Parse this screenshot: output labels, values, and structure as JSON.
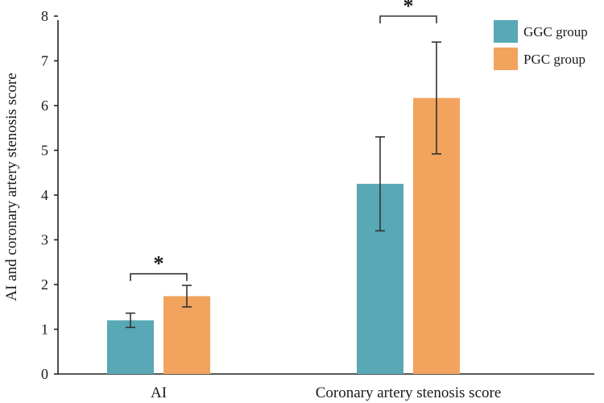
{
  "chart_data": {
    "type": "bar",
    "title": "",
    "xlabel": "",
    "ylabel": "AI and coronary artery stenosis score",
    "ylim": [
      0,
      8
    ],
    "yticks": [
      0,
      1,
      2,
      3,
      4,
      5,
      6,
      7,
      8
    ],
    "categories": [
      "AI",
      "Coronary artery stenosis score"
    ],
    "series": [
      {
        "name": "GGC group",
        "color": "#58a8b5",
        "values": [
          1.2,
          4.25
        ],
        "errors": [
          0.16,
          1.05
        ]
      },
      {
        "name": "PGC group",
        "color": "#f2a35e",
        "values": [
          1.74,
          6.17
        ],
        "errors": [
          0.24,
          1.25
        ]
      }
    ],
    "legend_position": "top-right",
    "significance": [
      {
        "category": "AI",
        "label": "*"
      },
      {
        "category": "Coronary artery stenosis score",
        "label": "*"
      }
    ]
  }
}
